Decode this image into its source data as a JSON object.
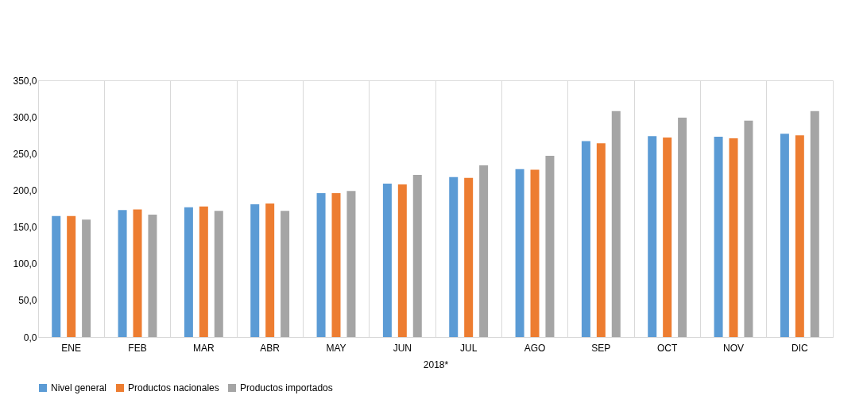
{
  "chart_data": {
    "type": "bar",
    "xlabel": "2018*",
    "categories": [
      "ENE",
      "FEB",
      "MAR",
      "ABR",
      "MAY",
      "JUN",
      "JUL",
      "AGO",
      "SEP",
      "OCT",
      "NOV",
      "DIC"
    ],
    "series": [
      {
        "name": "Nivel general",
        "color": "#5b9bd5",
        "values": [
          165,
          173,
          177,
          181,
          196,
          209,
          218,
          229,
          267,
          274,
          273,
          277
        ]
      },
      {
        "name": "Productos nacionales",
        "color": "#ed7d31",
        "values": [
          165,
          174,
          178,
          182,
          196,
          208,
          217,
          228,
          264,
          272,
          271,
          275
        ]
      },
      {
        "name": "Productos importados",
        "color": "#a5a5a5",
        "values": [
          160,
          167,
          172,
          172,
          199,
          221,
          234,
          247,
          308,
          299,
          295,
          308
        ]
      }
    ],
    "ylim": [
      0,
      350
    ],
    "yticks": [
      {
        "value": 0,
        "label": "0,0"
      },
      {
        "value": 50,
        "label": "50,0"
      },
      {
        "value": 100,
        "label": "100,0"
      },
      {
        "value": 150,
        "label": "150,0"
      },
      {
        "value": 200,
        "label": "200,0"
      },
      {
        "value": 250,
        "label": "250,0"
      },
      {
        "value": 300,
        "label": "300,0"
      },
      {
        "value": 350,
        "label": "350,0"
      }
    ],
    "grid": "x",
    "legend": "bottom"
  }
}
